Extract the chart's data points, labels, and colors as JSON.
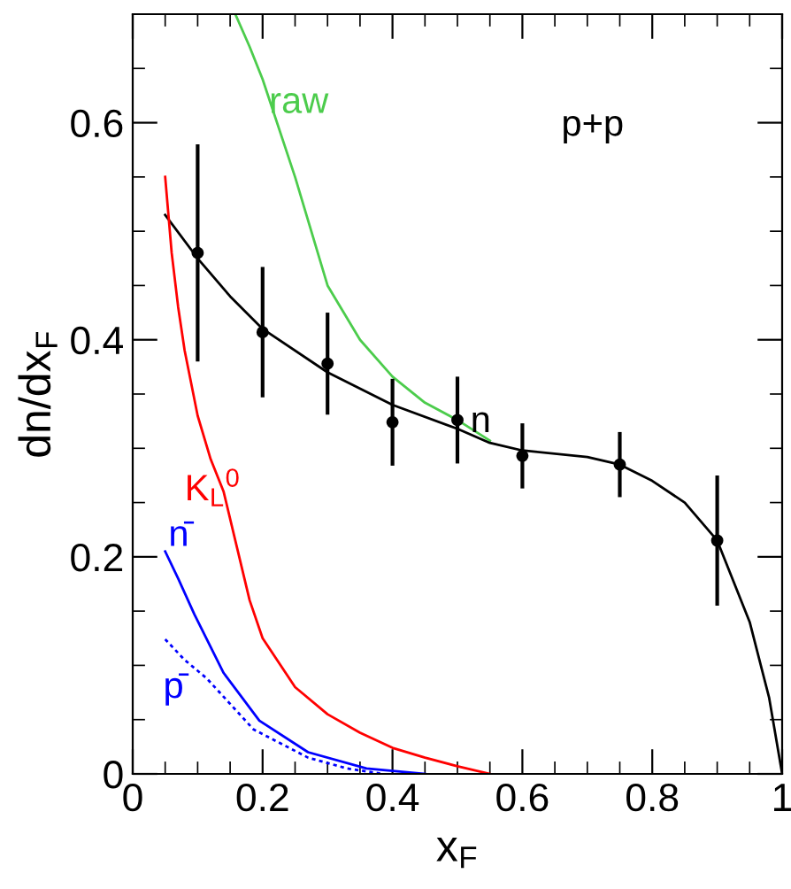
{
  "chart_data": {
    "type": "line",
    "xlabel": "x$_{F}$",
    "ylabel": "dn/dx$_{F}$",
    "annotations": [
      "p+p"
    ],
    "xlim": [
      0,
      1
    ],
    "ylim": [
      0,
      0.7
    ],
    "xticks": [
      0,
      {
        "value": 0.05,
        "label": null
      },
      {
        "value": 0.1,
        "label": null
      },
      {
        "value": 0.15,
        "label": null
      },
      0.2,
      {
        "value": 0.25,
        "label": null
      },
      {
        "value": 0.3,
        "label": null
      },
      {
        "value": 0.35,
        "label": null
      },
      0.4,
      {
        "value": 0.45,
        "label": null
      },
      {
        "value": 0.5,
        "label": null
      },
      {
        "value": 0.55,
        "label": null
      },
      0.6,
      {
        "value": 0.65,
        "label": null
      },
      {
        "value": 0.7,
        "label": null
      },
      {
        "value": 0.75,
        "label": null
      },
      0.8,
      {
        "value": 0.85,
        "label": null
      },
      {
        "value": 0.9,
        "label": null
      },
      {
        "value": 0.95,
        "label": null
      },
      1
    ],
    "yticks": [
      0,
      {
        "value": 0.05,
        "label": null
      },
      {
        "value": 0.1,
        "label": null
      },
      {
        "value": 0.15,
        "label": null
      },
      0.2,
      {
        "value": 0.25,
        "label": null
      },
      {
        "value": 0.3,
        "label": null
      },
      {
        "value": 0.35,
        "label": null
      },
      0.4,
      {
        "value": 0.45,
        "label": null
      },
      {
        "value": 0.5,
        "label": null
      },
      {
        "value": 0.55,
        "label": null
      },
      0.6,
      {
        "value": 0.65,
        "label": null
      }
    ],
    "grid": false,
    "legend": false,
    "series": [
      {
        "name": "raw",
        "color": "#4ccc4c",
        "x": [
          0.158,
          0.18,
          0.2,
          0.25,
          0.3,
          0.35,
          0.4,
          0.45,
          0.5,
          0.55
        ],
        "values": [
          0.7,
          0.67,
          0.64,
          0.55,
          0.45,
          0.4,
          0.366,
          0.342,
          0.326,
          0.307
        ]
      },
      {
        "name": "n",
        "color": "#000000",
        "x": [
          0.05,
          0.1,
          0.15,
          0.2,
          0.3,
          0.4,
          0.5,
          0.55,
          0.6,
          0.7,
          0.75,
          0.8,
          0.85,
          0.9,
          0.95,
          0.98,
          1.0
        ],
        "values": [
          0.515,
          0.475,
          0.44,
          0.41,
          0.37,
          0.34,
          0.318,
          0.305,
          0.298,
          0.292,
          0.285,
          0.27,
          0.25,
          0.215,
          0.14,
          0.07,
          0
        ]
      },
      {
        "color": "#000000",
        "type": "scatter",
        "marker": "circle",
        "x": [
          0.1,
          0.2,
          0.3,
          0.4,
          0.5,
          0.6,
          0.75,
          0.9
        ],
        "values": [
          0.48,
          0.407,
          0.378,
          0.324,
          0.326,
          0.293,
          0.285,
          0.215
        ],
        "errors": [
          0.1,
          0.06,
          0.047,
          0.04,
          0.04,
          0.03,
          0.03,
          0.06
        ]
      },
      {
        "name": "K$_{L}$$^{0}$",
        "color": "#ff0000",
        "x": [
          0.05,
          0.06,
          0.07,
          0.08,
          0.1,
          0.12,
          0.14,
          0.16,
          0.18,
          0.2,
          0.25,
          0.3,
          0.35,
          0.4,
          0.45,
          0.5,
          0.55
        ],
        "values": [
          0.55,
          0.48,
          0.43,
          0.39,
          0.33,
          0.29,
          0.26,
          0.21,
          0.16,
          0.125,
          0.08,
          0.055,
          0.038,
          0.024,
          0.015,
          0.007,
          0
        ]
      },
      {
        "name": "n̄",
        "color": "#0000ff",
        "x": [
          0.05,
          0.07,
          0.095,
          0.14,
          0.195,
          0.27,
          0.36,
          0.45
        ],
        "values": [
          0.205,
          0.18,
          0.147,
          0.093,
          0.049,
          0.02,
          0.005,
          0
        ]
      },
      {
        "name": "p̄",
        "color": "#0000ff",
        "line_style": "dotted",
        "x": [
          0.05,
          0.08,
          0.114,
          0.186,
          0.27,
          0.33,
          0.385
        ],
        "values": [
          0.124,
          0.105,
          0.088,
          0.041,
          0.015,
          0.005,
          0
        ]
      }
    ]
  }
}
